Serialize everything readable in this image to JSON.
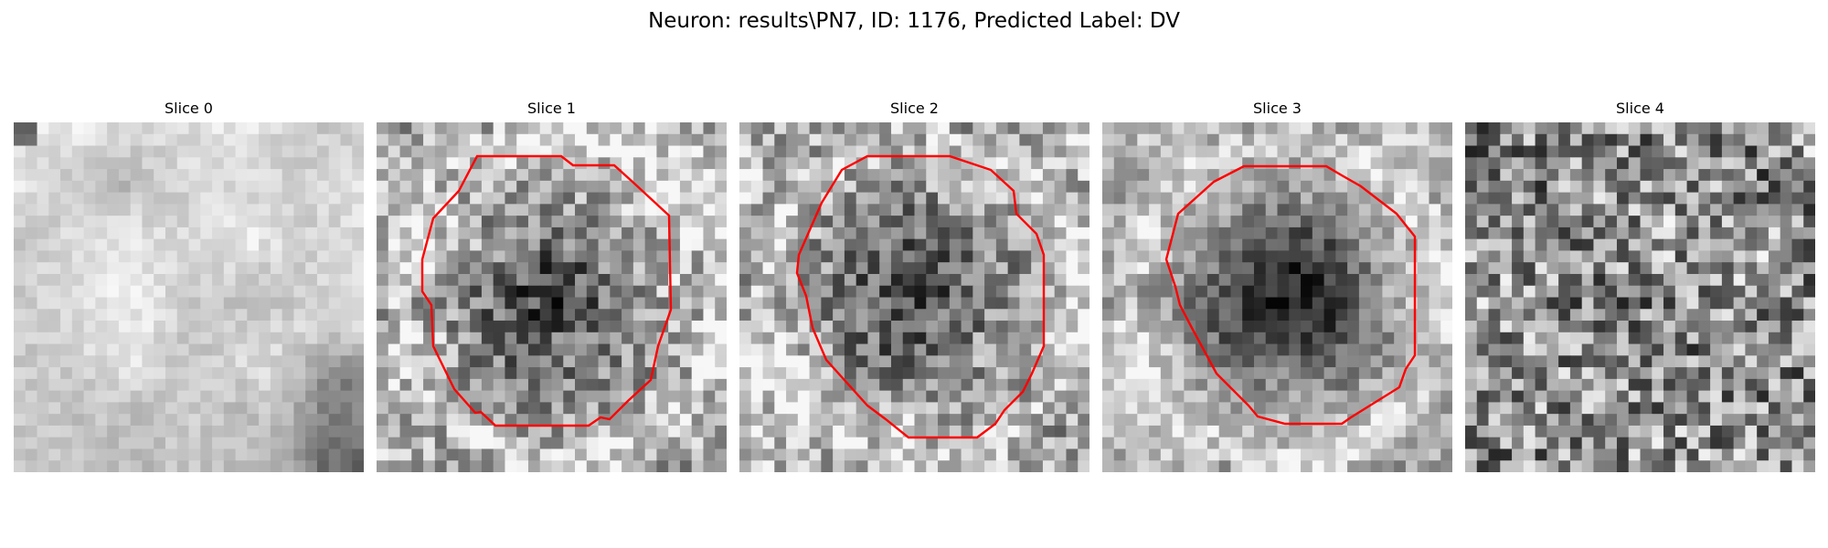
{
  "figure": {
    "title": "Neuron: results\\PN7, ID: 1176, Predicted Label: DV"
  },
  "panels": [
    {
      "title": "Slice 0",
      "pattern": "cloudy-bright",
      "contour": false
    },
    {
      "title": "Slice 1",
      "pattern": "dark-blob",
      "contour": true
    },
    {
      "title": "Slice 2",
      "pattern": "dark-blob",
      "contour": true
    },
    {
      "title": "Slice 3",
      "pattern": "dark-blob-strong",
      "contour": true
    },
    {
      "title": "Slice 4",
      "pattern": "noise",
      "contour": false
    }
  ],
  "colors": {
    "contour": "#ff0000",
    "background": "#ffffff"
  }
}
